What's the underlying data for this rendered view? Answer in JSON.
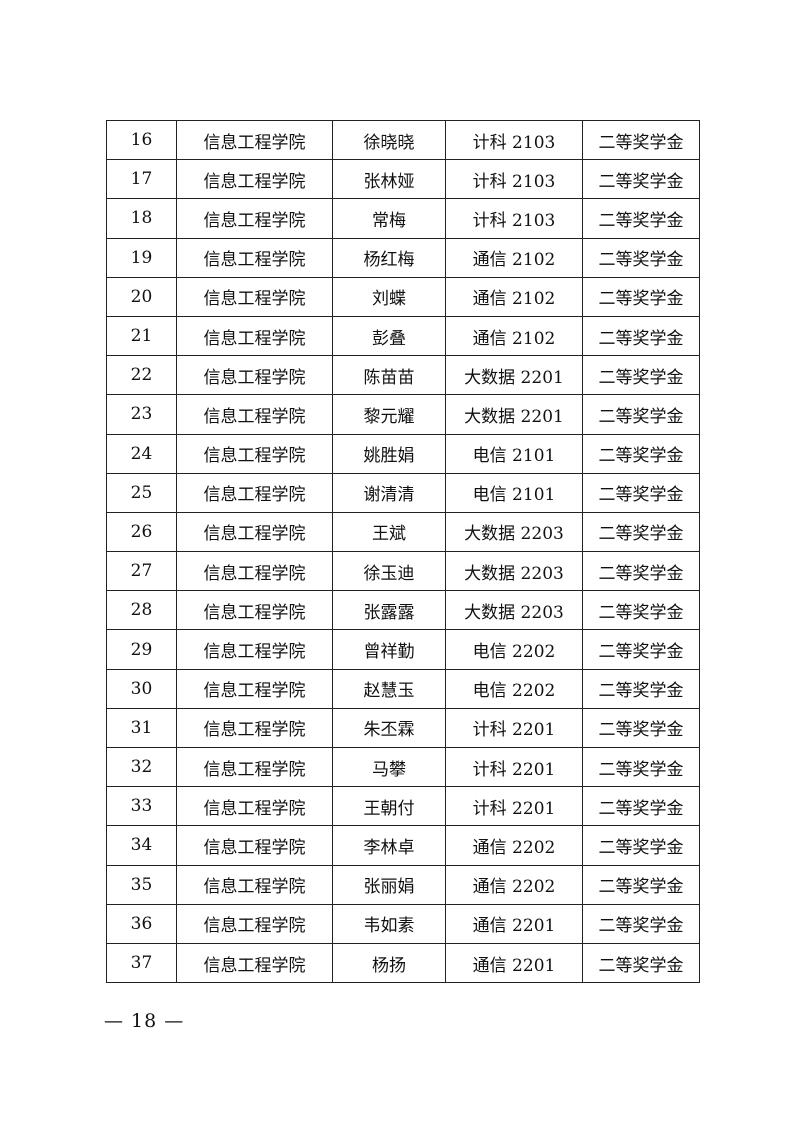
{
  "table": {
    "rows": [
      [
        "16",
        "信息工程学院",
        "徐晓晓",
        "计科 2103",
        "二等奖学金"
      ],
      [
        "17",
        "信息工程学院",
        "张林娅",
        "计科 2103",
        "二等奖学金"
      ],
      [
        "18",
        "信息工程学院",
        "常梅",
        "计科 2103",
        "二等奖学金"
      ],
      [
        "19",
        "信息工程学院",
        "杨红梅",
        "通信 2102",
        "二等奖学金"
      ],
      [
        "20",
        "信息工程学院",
        "刘蝶",
        "通信 2102",
        "二等奖学金"
      ],
      [
        "21",
        "信息工程学院",
        "彭叠",
        "通信 2102",
        "二等奖学金"
      ],
      [
        "22",
        "信息工程学院",
        "陈苗苗",
        "大数据 2201",
        "二等奖学金"
      ],
      [
        "23",
        "信息工程学院",
        "黎元耀",
        "大数据 2201",
        "二等奖学金"
      ],
      [
        "24",
        "信息工程学院",
        "姚胜娟",
        "电信 2101",
        "二等奖学金"
      ],
      [
        "25",
        "信息工程学院",
        "谢清清",
        "电信 2101",
        "二等奖学金"
      ],
      [
        "26",
        "信息工程学院",
        "王斌",
        "大数据 2203",
        "二等奖学金"
      ],
      [
        "27",
        "信息工程学院",
        "徐玉迪",
        "大数据 2203",
        "二等奖学金"
      ],
      [
        "28",
        "信息工程学院",
        "张露露",
        "大数据 2203",
        "二等奖学金"
      ],
      [
        "29",
        "信息工程学院",
        "曾祥勤",
        "电信 2202",
        "二等奖学金"
      ],
      [
        "30",
        "信息工程学院",
        "赵慧玉",
        "电信 2202",
        "二等奖学金"
      ],
      [
        "31",
        "信息工程学院",
        "朱丕霖",
        "计科 2201",
        "二等奖学金"
      ],
      [
        "32",
        "信息工程学院",
        "马攀",
        "计科 2201",
        "二等奖学金"
      ],
      [
        "33",
        "信息工程学院",
        "王朝付",
        "计科 2201",
        "二等奖学金"
      ],
      [
        "34",
        "信息工程学院",
        "李林卓",
        "通信 2202",
        "二等奖学金"
      ],
      [
        "35",
        "信息工程学院",
        "张丽娟",
        "通信 2202",
        "二等奖学金"
      ],
      [
        "36",
        "信息工程学院",
        "韦如素",
        "通信 2201",
        "二等奖学金"
      ],
      [
        "37",
        "信息工程学院",
        "杨扬",
        "通信 2201",
        "二等奖学金"
      ]
    ]
  },
  "footer": {
    "page_number": "— 18 —"
  }
}
